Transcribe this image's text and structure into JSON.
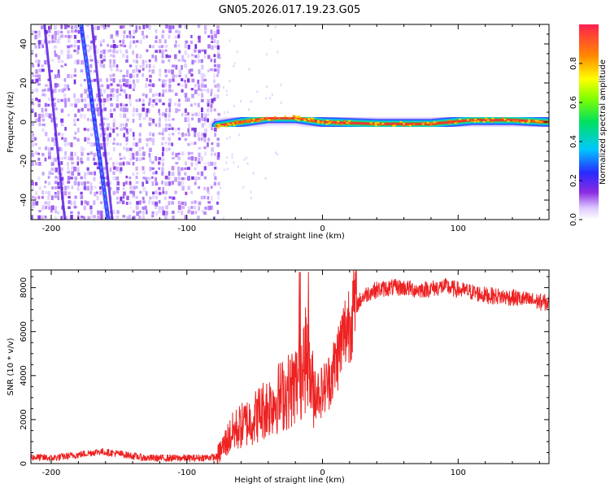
{
  "title": "GN05.2026.017.19.23.G05",
  "chart_data": [
    {
      "type": "heatmap",
      "xlabel": "Height of straight line (km)",
      "ylabel": "Frequency (Hz)",
      "xlim": [
        -215,
        167
      ],
      "ylim": [
        -50,
        50
      ],
      "xticks": [
        -200,
        -100,
        0,
        100
      ],
      "yticks": [
        -40,
        -20,
        0,
        20,
        40
      ],
      "colorbar": {
        "label": "Normalized spectral amplitude",
        "range": [
          0,
          1
        ],
        "ticks": [
          0.0,
          0.2,
          0.4,
          0.6,
          0.8
        ]
      },
      "noise_region_end_km": -78,
      "tone_track": [
        {
          "x": -78,
          "y": -2
        },
        {
          "x": -60,
          "y": 0
        },
        {
          "x": -40,
          "y": 2
        },
        {
          "x": -20,
          "y": 2
        },
        {
          "x": 0,
          "y": 0
        },
        {
          "x": 40,
          "y": -1
        },
        {
          "x": 80,
          "y": -1
        },
        {
          "x": 110,
          "y": 1
        },
        {
          "x": 140,
          "y": 1
        },
        {
          "x": 167,
          "y": 0
        }
      ],
      "diagonal_streaks": [
        {
          "x0": -178,
          "y0": 50,
          "x1": -158,
          "y1": -50
        },
        {
          "x0": -170,
          "y0": 50,
          "x1": -155,
          "y1": -50
        },
        {
          "x0": -205,
          "y0": 50,
          "x1": -190,
          "y1": -50
        }
      ]
    },
    {
      "type": "line",
      "xlabel": "Height of straight line (km)",
      "ylabel": "SNR (10 * v/v)",
      "xlim": [
        -215,
        167
      ],
      "ylim": [
        0,
        8800
      ],
      "xticks": [
        -200,
        -100,
        0,
        100
      ],
      "yticks": [
        0,
        2000,
        4000,
        6000,
        8000
      ],
      "series": [
        {
          "name": "SNR",
          "color": "#ee2222",
          "x": [
            -215,
            -200,
            -180,
            -165,
            -150,
            -130,
            -110,
            -95,
            -85,
            -78,
            -75,
            -70,
            -65,
            -60,
            -55,
            -50,
            -45,
            -40,
            -35,
            -30,
            -25,
            -20,
            -15,
            -12,
            -10,
            -8,
            -5,
            0,
            5,
            10,
            15,
            20,
            25,
            30,
            35,
            40,
            50,
            60,
            70,
            80,
            90,
            100,
            110,
            120,
            130,
            140,
            150,
            160,
            167
          ],
          "y": [
            300,
            250,
            400,
            550,
            450,
            250,
            250,
            250,
            280,
            300,
            600,
            1100,
            1500,
            1700,
            1900,
            2100,
            2400,
            2600,
            2900,
            3100,
            3300,
            3600,
            4200,
            4800,
            4300,
            3500,
            3200,
            3300,
            3800,
            4600,
            5700,
            6600,
            7200,
            7600,
            7800,
            7900,
            8000,
            8000,
            7900,
            7950,
            8050,
            7900,
            7800,
            7650,
            7600,
            7550,
            7450,
            7350,
            7300
          ]
        }
      ]
    }
  ]
}
